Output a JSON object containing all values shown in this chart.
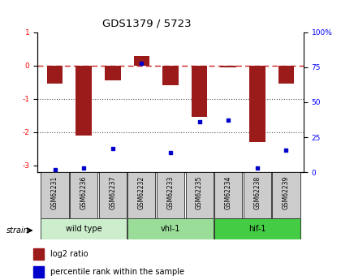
{
  "title": "GDS1379 / 5723",
  "samples": [
    "GSM62231",
    "GSM62236",
    "GSM62237",
    "GSM62232",
    "GSM62233",
    "GSM62235",
    "GSM62234",
    "GSM62238",
    "GSM62239"
  ],
  "log2_ratio": [
    -0.55,
    -2.1,
    -0.45,
    0.28,
    -0.6,
    -1.55,
    -0.05,
    -2.3,
    -0.55
  ],
  "percentile_rank": [
    2,
    3,
    17,
    78,
    14,
    36,
    37,
    3,
    16
  ],
  "groups": [
    {
      "label": "wild type",
      "indices": [
        0,
        1,
        2
      ],
      "color": "#cceecc"
    },
    {
      "label": "vhl-1",
      "indices": [
        3,
        4,
        5
      ],
      "color": "#99dd99"
    },
    {
      "label": "hif-1",
      "indices": [
        6,
        7,
        8
      ],
      "color": "#44cc44"
    }
  ],
  "ylim": [
    -3.2,
    1.0
  ],
  "y2lim": [
    0,
    100
  ],
  "bar_color": "#9b1a1a",
  "dot_color": "#0000cc",
  "hline_color": "#cc2222",
  "dotline_color": "#555555",
  "background_color": "#ffffff",
  "label_bg_color": "#cccccc"
}
